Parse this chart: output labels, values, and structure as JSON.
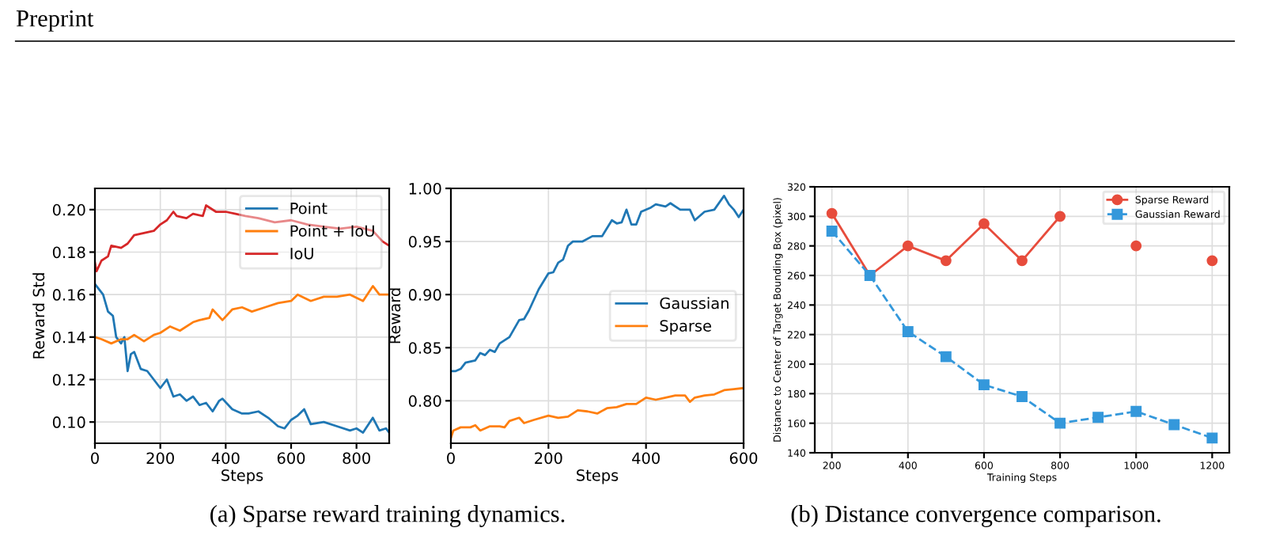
{
  "chart_data": [
    {
      "type": "line",
      "xlabel": "Steps",
      "ylabel": "Reward Std",
      "xlim": [
        0,
        900
      ],
      "xticks": [
        0,
        200,
        400,
        600,
        800
      ],
      "ylim": [
        0.09,
        0.21
      ],
      "yticks": [
        {
          "value": 0.1,
          "label": "0.10"
        },
        {
          "value": 0.12,
          "label": "0.12"
        },
        {
          "value": 0.14,
          "label": "0.14"
        },
        {
          "value": 0.16,
          "label": "0.16"
        },
        {
          "value": 0.18,
          "label": "0.18"
        },
        {
          "value": 0.2,
          "label": "0.20"
        }
      ],
      "grid": true,
      "legend": "top right",
      "annotations": [
        "Preprint",
        "(a) Sparse reward training dynamics."
      ],
      "series": [
        {
          "name": "Point",
          "color": "#1f77b4",
          "x": [
            0,
            10,
            25,
            40,
            55,
            65,
            80,
            90,
            100,
            110,
            120,
            140,
            160,
            180,
            200,
            220,
            240,
            260,
            280,
            300,
            320,
            340,
            360,
            380,
            390,
            420,
            450,
            470,
            500,
            530,
            560,
            580,
            600,
            620,
            640,
            660,
            700,
            740,
            780,
            800,
            820,
            850,
            870,
            890,
            900
          ],
          "values": [
            0.165,
            0.163,
            0.16,
            0.152,
            0.15,
            0.14,
            0.137,
            0.14,
            0.124,
            0.132,
            0.133,
            0.125,
            0.124,
            0.12,
            0.116,
            0.12,
            0.112,
            0.113,
            0.11,
            0.112,
            0.108,
            0.109,
            0.105,
            0.11,
            0.111,
            0.106,
            0.104,
            0.104,
            0.105,
            0.102,
            0.098,
            0.097,
            0.101,
            0.103,
            0.106,
            0.099,
            0.1,
            0.098,
            0.096,
            0.097,
            0.095,
            0.102,
            0.096,
            0.097,
            0.095
          ]
        },
        {
          "name": "Point + IoU",
          "color": "#ff7f0e",
          "x": [
            0,
            20,
            50,
            80,
            100,
            120,
            150,
            180,
            200,
            230,
            260,
            300,
            320,
            350,
            360,
            390,
            420,
            450,
            480,
            520,
            560,
            600,
            620,
            660,
            700,
            740,
            780,
            820,
            850,
            870,
            900
          ],
          "values": [
            0.14,
            0.139,
            0.137,
            0.139,
            0.139,
            0.141,
            0.138,
            0.141,
            0.142,
            0.145,
            0.143,
            0.147,
            0.148,
            0.149,
            0.153,
            0.148,
            0.153,
            0.154,
            0.152,
            0.154,
            0.156,
            0.157,
            0.16,
            0.157,
            0.159,
            0.159,
            0.16,
            0.157,
            0.164,
            0.16,
            0.16
          ]
        },
        {
          "name": "IoU",
          "color": "#d62728",
          "x": [
            0,
            5,
            20,
            40,
            50,
            80,
            100,
            120,
            150,
            180,
            200,
            220,
            240,
            250,
            280,
            300,
            330,
            340,
            370,
            400,
            430,
            460,
            500,
            550,
            600,
            650,
            700,
            750,
            800,
            850,
            880,
            900
          ],
          "values": [
            0.175,
            0.171,
            0.176,
            0.178,
            0.183,
            0.182,
            0.184,
            0.188,
            0.189,
            0.19,
            0.193,
            0.195,
            0.199,
            0.197,
            0.196,
            0.198,
            0.197,
            0.202,
            0.199,
            0.199,
            0.198,
            0.197,
            0.196,
            0.194,
            0.195,
            0.193,
            0.192,
            0.191,
            0.192,
            0.19,
            0.185,
            0.183
          ]
        }
      ]
    },
    {
      "type": "line",
      "xlabel": "Steps",
      "ylabel": "Reward",
      "xlim": [
        0,
        600
      ],
      "xticks": [
        0,
        200,
        400,
        600
      ],
      "ylim": [
        0.76,
        1.0
      ],
      "yticks": [
        {
          "value": 0.8,
          "label": "0.80"
        },
        {
          "value": 0.85,
          "label": "0.85"
        },
        {
          "value": 0.9,
          "label": "0.90"
        },
        {
          "value": 0.95,
          "label": "0.95"
        },
        {
          "value": 1.0,
          "label": "1.00"
        }
      ],
      "grid": true,
      "legend": "right",
      "series": [
        {
          "name": "Gaussian",
          "color": "#1f77b4",
          "x": [
            0,
            10,
            20,
            30,
            50,
            60,
            70,
            80,
            90,
            100,
            110,
            120,
            130,
            140,
            150,
            160,
            180,
            200,
            210,
            220,
            230,
            240,
            250,
            270,
            290,
            310,
            330,
            340,
            350,
            360,
            370,
            380,
            390,
            410,
            420,
            440,
            450,
            470,
            490,
            500,
            520,
            540,
            560,
            570,
            580,
            590,
            600
          ],
          "values": [
            0.828,
            0.828,
            0.83,
            0.836,
            0.838,
            0.845,
            0.843,
            0.848,
            0.846,
            0.854,
            0.857,
            0.86,
            0.868,
            0.876,
            0.877,
            0.885,
            0.905,
            0.92,
            0.921,
            0.93,
            0.933,
            0.946,
            0.95,
            0.95,
            0.955,
            0.955,
            0.97,
            0.967,
            0.968,
            0.98,
            0.966,
            0.966,
            0.978,
            0.982,
            0.985,
            0.983,
            0.986,
            0.98,
            0.98,
            0.97,
            0.978,
            0.98,
            0.993,
            0.985,
            0.98,
            0.973,
            0.98
          ]
        },
        {
          "name": "Sparse",
          "color": "#ff7f0e",
          "x": [
            0,
            5,
            20,
            40,
            50,
            60,
            80,
            100,
            110,
            120,
            140,
            150,
            170,
            200,
            220,
            240,
            260,
            280,
            300,
            320,
            340,
            360,
            380,
            400,
            420,
            440,
            460,
            480,
            490,
            500,
            520,
            540,
            560,
            580,
            600
          ],
          "values": [
            0.765,
            0.772,
            0.775,
            0.775,
            0.777,
            0.772,
            0.776,
            0.776,
            0.775,
            0.781,
            0.784,
            0.779,
            0.782,
            0.786,
            0.784,
            0.785,
            0.791,
            0.79,
            0.788,
            0.793,
            0.794,
            0.797,
            0.797,
            0.803,
            0.801,
            0.803,
            0.805,
            0.805,
            0.799,
            0.803,
            0.805,
            0.806,
            0.81,
            0.811,
            0.812
          ]
        }
      ]
    },
    {
      "type": "line",
      "xlabel": "Training Steps",
      "ylabel": "Distance to Center of Target Bounding Box (pixel)",
      "xlim": [
        155,
        1245
      ],
      "xticks": [
        200,
        400,
        600,
        800,
        1000,
        1200
      ],
      "ylim": [
        140,
        320
      ],
      "yticks": [
        140,
        160,
        180,
        200,
        220,
        240,
        260,
        280,
        300,
        320
      ],
      "grid": true,
      "legend": "top right",
      "annotations": [
        "(b) Distance convergence comparison."
      ],
      "x": [
        200,
        300,
        400,
        500,
        600,
        700,
        800,
        900,
        1000,
        1100,
        1200
      ],
      "series": [
        {
          "name": "Sparse Reward",
          "color": "#e74c3c",
          "marker": "circle",
          "line_style": "solid",
          "values": [
            302,
            260,
            280,
            270,
            295,
            270,
            300,
            null,
            280,
            null,
            270
          ]
        },
        {
          "name": "Gaussian Reward",
          "color": "#3498db",
          "marker": "square",
          "line_style": "dashed",
          "values": [
            290,
            260,
            222,
            205,
            186,
            178,
            160,
            164,
            168,
            159,
            150
          ]
        }
      ]
    }
  ]
}
